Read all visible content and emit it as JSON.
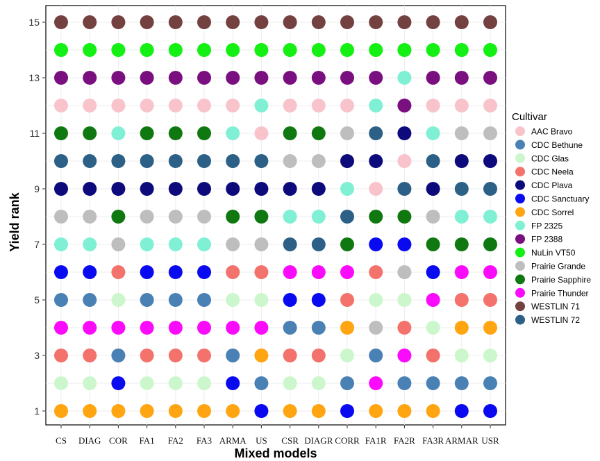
{
  "chart_data": {
    "type": "scatter",
    "xlabel": "Mixed models",
    "ylabel": "Yield rank",
    "ylim": [
      1,
      15
    ],
    "yticks": [
      1,
      3,
      5,
      7,
      9,
      11,
      13,
      15
    ],
    "grid": true,
    "legend_placement": "right",
    "legend_title": "Cultivar",
    "categories": [
      "CS",
      "DIAG",
      "COR",
      "FA1",
      "FA2",
      "FA3",
      "ARMA",
      "US",
      "CSR",
      "DIAGR",
      "CORR",
      "FA1R",
      "FA2R",
      "FA3R",
      "ARMAR",
      "USR"
    ],
    "cultivars": [
      {
        "name": "AAC Bravo",
        "color": "#f9c3cb"
      },
      {
        "name": "CDC Bethune",
        "color": "#4a81b5"
      },
      {
        "name": "CDC Glas",
        "color": "#ccf7cc"
      },
      {
        "name": "CDC Neela",
        "color": "#f4726c"
      },
      {
        "name": "CDC Plava",
        "color": "#0d0b7c"
      },
      {
        "name": "CDC Sanctuary",
        "color": "#0a0af0"
      },
      {
        "name": "CDC Sorrel",
        "color": "#ffa511"
      },
      {
        "name": "FP 2325",
        "color": "#80f0d4"
      },
      {
        "name": "FP 2388",
        "color": "#7a0f80"
      },
      {
        "name": "NuLin VT50",
        "color": "#14ef14"
      },
      {
        "name": "Prairie Grande",
        "color": "#bebebe"
      },
      {
        "name": "Prairie Sapphire",
        "color": "#107810"
      },
      {
        "name": "Prairie Thunder",
        "color": "#fb0bfb"
      },
      {
        "name": "WESTLIN 71",
        "color": "#744141"
      },
      {
        "name": "WESTLIN 72",
        "color": "#2c6086"
      }
    ],
    "ranks": {
      "CS": [
        "CDC Sorrel",
        "CDC Glas",
        "CDC Neela",
        "Prairie Thunder",
        "CDC Bethune",
        "CDC Sanctuary",
        "FP 2325",
        "Prairie Grande",
        "CDC Plava",
        "WESTLIN 72",
        "Prairie Sapphire",
        "AAC Bravo",
        "FP 2388",
        "NuLin VT50",
        "WESTLIN 71"
      ],
      "DIAG": [
        "CDC Sorrel",
        "CDC Glas",
        "CDC Neela",
        "Prairie Thunder",
        "CDC Bethune",
        "CDC Sanctuary",
        "FP 2325",
        "Prairie Grande",
        "CDC Plava",
        "WESTLIN 72",
        "Prairie Sapphire",
        "AAC Bravo",
        "FP 2388",
        "NuLin VT50",
        "WESTLIN 71"
      ],
      "COR": [
        "CDC Sorrel",
        "CDC Sanctuary",
        "CDC Bethune",
        "Prairie Thunder",
        "CDC Glas",
        "CDC Neela",
        "Prairie Grande",
        "Prairie Sapphire",
        "CDC Plava",
        "WESTLIN 72",
        "FP 2325",
        "AAC Bravo",
        "FP 2388",
        "NuLin VT50",
        "WESTLIN 71"
      ],
      "FA1": [
        "CDC Sorrel",
        "CDC Glas",
        "CDC Neela",
        "Prairie Thunder",
        "CDC Bethune",
        "CDC Sanctuary",
        "FP 2325",
        "Prairie Grande",
        "CDC Plava",
        "WESTLIN 72",
        "Prairie Sapphire",
        "AAC Bravo",
        "FP 2388",
        "NuLin VT50",
        "WESTLIN 71"
      ],
      "FA2": [
        "CDC Sorrel",
        "CDC Glas",
        "CDC Neela",
        "Prairie Thunder",
        "CDC Bethune",
        "CDC Sanctuary",
        "FP 2325",
        "Prairie Grande",
        "CDC Plava",
        "WESTLIN 72",
        "Prairie Sapphire",
        "AAC Bravo",
        "FP 2388",
        "NuLin VT50",
        "WESTLIN 71"
      ],
      "FA3": [
        "CDC Sorrel",
        "CDC Glas",
        "CDC Neela",
        "Prairie Thunder",
        "CDC Bethune",
        "CDC Sanctuary",
        "FP 2325",
        "Prairie Grande",
        "CDC Plava",
        "WESTLIN 72",
        "Prairie Sapphire",
        "AAC Bravo",
        "FP 2388",
        "NuLin VT50",
        "WESTLIN 71"
      ],
      "ARMA": [
        "CDC Sorrel",
        "CDC Sanctuary",
        "CDC Bethune",
        "Prairie Thunder",
        "CDC Glas",
        "CDC Neela",
        "Prairie Grande",
        "Prairie Sapphire",
        "CDC Plava",
        "WESTLIN 72",
        "FP 2325",
        "AAC Bravo",
        "FP 2388",
        "NuLin VT50",
        "WESTLIN 71"
      ],
      "US": [
        "CDC Sanctuary",
        "CDC Bethune",
        "CDC Sorrel",
        "Prairie Thunder",
        "CDC Glas",
        "CDC Neela",
        "Prairie Grande",
        "Prairie Sapphire",
        "CDC Plava",
        "WESTLIN 72",
        "AAC Bravo",
        "FP 2325",
        "FP 2388",
        "NuLin VT50",
        "WESTLIN 71"
      ],
      "CSR": [
        "CDC Sorrel",
        "CDC Glas",
        "CDC Neela",
        "CDC Bethune",
        "CDC Sanctuary",
        "Prairie Thunder",
        "WESTLIN 72",
        "FP 2325",
        "CDC Plava",
        "Prairie Grande",
        "Prairie Sapphire",
        "AAC Bravo",
        "FP 2388",
        "NuLin VT50",
        "WESTLIN 71"
      ],
      "DIAGR": [
        "CDC Sorrel",
        "CDC Glas",
        "CDC Neela",
        "CDC Bethune",
        "CDC Sanctuary",
        "Prairie Thunder",
        "WESTLIN 72",
        "FP 2325",
        "CDC Plava",
        "Prairie Grande",
        "Prairie Sapphire",
        "AAC Bravo",
        "FP 2388",
        "NuLin VT50",
        "WESTLIN 71"
      ],
      "CORR": [
        "CDC Sanctuary",
        "CDC Bethune",
        "CDC Glas",
        "CDC Sorrel",
        "CDC Neela",
        "Prairie Thunder",
        "Prairie Sapphire",
        "WESTLIN 72",
        "FP 2325",
        "CDC Plava",
        "Prairie Grande",
        "AAC Bravo",
        "FP 2388",
        "NuLin VT50",
        "WESTLIN 71"
      ],
      "FA1R": [
        "CDC Sorrel",
        "Prairie Thunder",
        "CDC Bethune",
        "Prairie Grande",
        "CDC Glas",
        "CDC Neela",
        "CDC Sanctuary",
        "Prairie Sapphire",
        "AAC Bravo",
        "CDC Plava",
        "WESTLIN 72",
        "FP 2325",
        "FP 2388",
        "NuLin VT50",
        "WESTLIN 71"
      ],
      "FA2R": [
        "CDC Sorrel",
        "CDC Bethune",
        "Prairie Thunder",
        "CDC Neela",
        "CDC Glas",
        "Prairie Grande",
        "CDC Sanctuary",
        "Prairie Sapphire",
        "WESTLIN 72",
        "AAC Bravo",
        "CDC Plava",
        "FP 2388",
        "FP 2325",
        "NuLin VT50",
        "WESTLIN 71"
      ],
      "FA3R": [
        "CDC Sorrel",
        "CDC Bethune",
        "CDC Neela",
        "CDC Glas",
        "Prairie Thunder",
        "CDC Sanctuary",
        "Prairie Sapphire",
        "Prairie Grande",
        "CDC Plava",
        "WESTLIN 72",
        "FP 2325",
        "AAC Bravo",
        "FP 2388",
        "NuLin VT50",
        "WESTLIN 71"
      ],
      "ARMAR": [
        "CDC Sanctuary",
        "CDC Bethune",
        "CDC Glas",
        "CDC Sorrel",
        "CDC Neela",
        "Prairie Thunder",
        "Prairie Sapphire",
        "FP 2325",
        "WESTLIN 72",
        "CDC Plava",
        "Prairie Grande",
        "AAC Bravo",
        "FP 2388",
        "NuLin VT50",
        "WESTLIN 71"
      ],
      "USR": [
        "CDC Sanctuary",
        "CDC Bethune",
        "CDC Glas",
        "CDC Sorrel",
        "CDC Neela",
        "Prairie Thunder",
        "Prairie Sapphire",
        "FP 2325",
        "WESTLIN 72",
        "CDC Plava",
        "Prairie Grande",
        "AAC Bravo",
        "FP 2388",
        "NuLin VT50",
        "WESTLIN 71"
      ]
    }
  }
}
